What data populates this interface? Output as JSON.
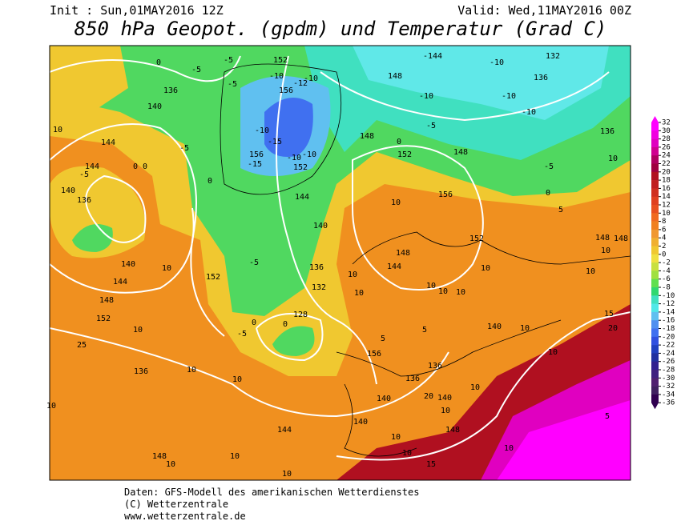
{
  "header": {
    "init": "Init : Sun,01MAY2016 12Z",
    "valid": "Valid: Wed,11MAY2016 00Z",
    "title": "850 hPa Geopot. (gpdm) und Temperatur (Grad C)"
  },
  "colorbar": {
    "ticks": [
      32,
      30,
      28,
      26,
      24,
      22,
      20,
      18,
      16,
      14,
      12,
      10,
      8,
      6,
      4,
      2,
      0,
      -2,
      -4,
      -6,
      -8,
      -10,
      -12,
      -14,
      -16,
      -18,
      -20,
      -22,
      -24,
      -26,
      -28,
      -30,
      -32,
      -34,
      -36
    ],
    "colors": [
      "#ff00ff",
      "#f000e0",
      "#e000c0",
      "#d00090",
      "#b00060",
      "#a00040",
      "#b01020",
      "#c02020",
      "#d03020",
      "#e04020",
      "#e85020",
      "#f06a20",
      "#f08020",
      "#f09830",
      "#f0b030",
      "#f0c830",
      "#f0e040",
      "#c8e040",
      "#a0e040",
      "#60e050",
      "#30d870",
      "#40e0c0",
      "#50e8e8",
      "#60c0f0",
      "#5090f0",
      "#4070f0",
      "#3050e0",
      "#2040c0",
      "#2030a0",
      "#302090",
      "#402080",
      "#502070",
      "#402060",
      "#300050"
    ]
  },
  "map": {
    "labels": [
      "0",
      "-5",
      "152",
      "-5",
      "-5",
      "136",
      "140",
      "-10",
      "-10",
      "-12",
      "156",
      "-144",
      "-10",
      "132",
      "136",
      "148",
      "-10",
      "-10",
      "-10",
      "-5",
      "10",
      "144",
      "-5",
      "-10",
      "-15",
      "148",
      "0",
      "148",
      "152",
      "156",
      "-15",
      "-10",
      "-10",
      "152",
      "144",
      "0 0",
      "-5",
      "-5",
      "10",
      "136",
      "0",
      "0",
      "140",
      "136",
      "156",
      "144",
      "10",
      "5",
      "140",
      "152",
      "148",
      "148",
      "10",
      "148",
      "144",
      "140",
      "10",
      "144",
      "-5",
      "136",
      "152",
      "10",
      "10",
      "132",
      "10",
      "10",
      "10",
      "10",
      "10",
      "148",
      "152",
      "128",
      "0",
      "0",
      "-5",
      "5",
      "140",
      "10",
      "10",
      "10",
      "15",
      "20",
      "25",
      "156",
      "5",
      "136",
      "136",
      "136",
      "10",
      "10",
      "10",
      "20",
      "140",
      "140",
      "10",
      "140",
      "148",
      "144",
      "10",
      "10",
      "15",
      "148",
      "10",
      "10",
      "10",
      "10",
      "5",
      "10"
    ]
  },
  "footer": {
    "line1": "Daten: GFS-Modell des amerikanischen Wetterdienstes",
    "line2": "(C) Wetterzentrale",
    "line3": "www.wetterzentrale.de"
  }
}
